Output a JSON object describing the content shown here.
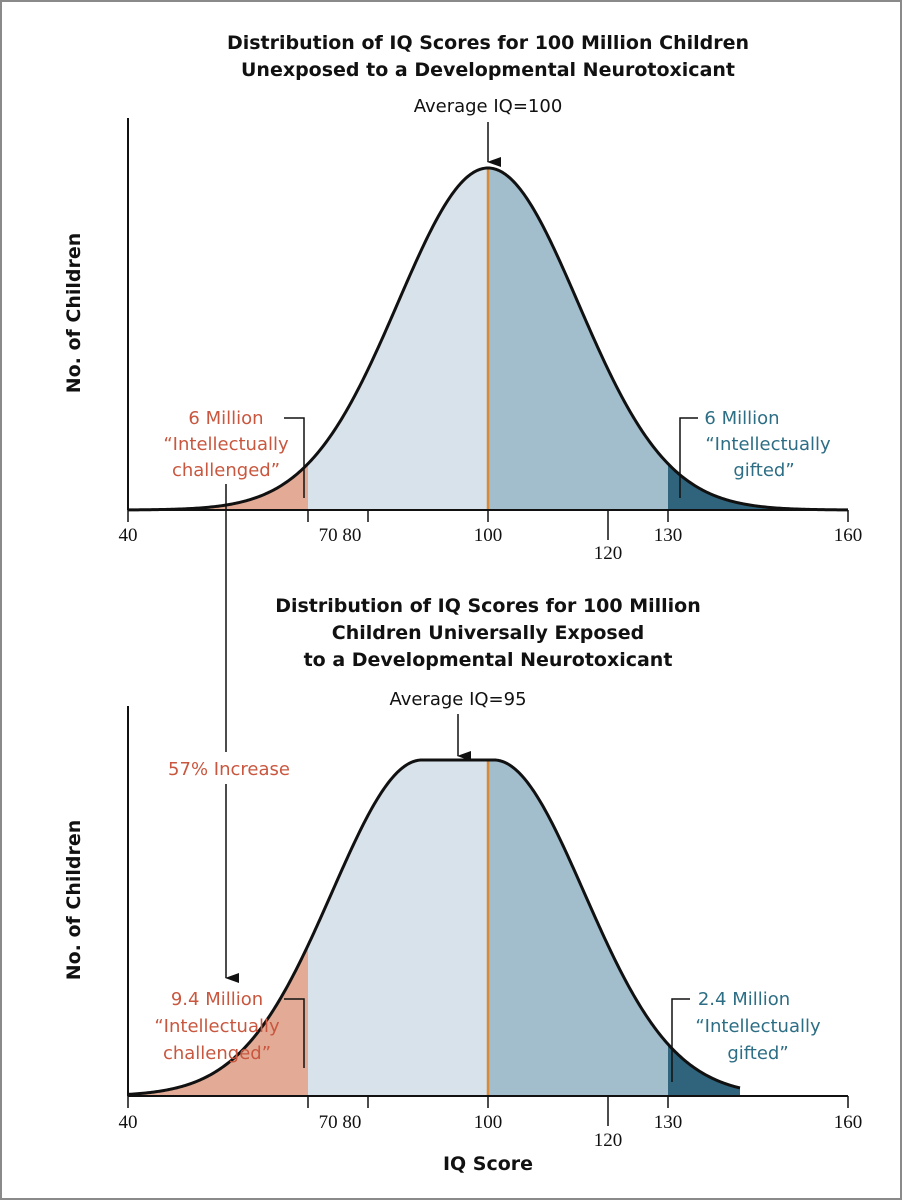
{
  "colors": {
    "light": "#d8e2ea",
    "mid": "#a2bdcc",
    "dark": "#2f647c",
    "low": "#e3ab95",
    "mean_line": "#d98a38",
    "red_text": "#c9573f",
    "teal_text": "#2d6e85"
  },
  "xlabel": "IQ Score",
  "increase_label": "57% Increase",
  "chart_data": [
    {
      "type": "area",
      "title": [
        "Distribution of IQ Scores for 100 Million Children",
        "Unexposed to a Developmental Neurotoxicant"
      ],
      "ylabel": "No. of Children",
      "xlim": [
        40,
        160
      ],
      "tick_labels": [
        "40",
        "70 80",
        "100",
        "120",
        "130",
        "160"
      ],
      "mean": 100,
      "sd": 15,
      "average_label": "Average IQ=100",
      "low_cutoff": 70,
      "high_cutoff": 130,
      "low_annotation": [
        "6 Million",
        "“Intellectually",
        "challenged”"
      ],
      "high_annotation": [
        "6 Million",
        "“Intellectually",
        "gifted”"
      ],
      "low_count_million": 6,
      "high_count_million": 6
    },
    {
      "type": "area",
      "title": [
        "Distribution of IQ Scores for 100 Million",
        "Children Universally Exposed",
        "to a Developmental Neurotoxicant"
      ],
      "ylabel": "No. of Children",
      "xlim": [
        40,
        160
      ],
      "tick_labels": [
        "40",
        "70 80",
        "100",
        "120",
        "130",
        "160"
      ],
      "mean": 95,
      "sd": 15,
      "average_label": "Average IQ=95",
      "low_cutoff": 70,
      "high_cutoff": 130,
      "low_annotation": [
        "9.4 Million",
        "“Intellectually",
        "challenged”"
      ],
      "high_annotation": [
        "2.4 Million",
        "“Intellectually",
        "gifted”"
      ],
      "low_count_million": 9.4,
      "high_count_million": 2.4
    }
  ]
}
